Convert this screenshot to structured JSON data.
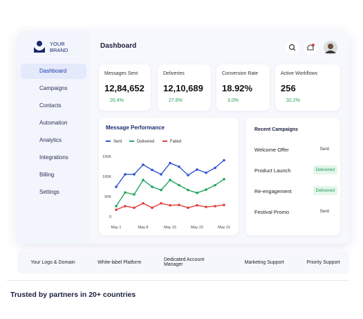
{
  "brand": {
    "line1": "YOUR",
    "line2": "BRAND"
  },
  "nav": {
    "active": 0,
    "items": [
      "Dashboard",
      "Campaigns",
      "Contacts",
      "Automation",
      "Analytics",
      "Integrations",
      "Billing",
      "Settings"
    ]
  },
  "header": {
    "title": "Dashboard"
  },
  "stats": [
    {
      "label": "Messages Sent",
      "value": "12,84,652",
      "change": "20.4%"
    },
    {
      "label": "Deliveries",
      "value": "12,10,689",
      "change": "27.6%"
    },
    {
      "label": "Conversion Rate",
      "value": "18.92%",
      "change": "3.0%"
    },
    {
      "label": "Active Workflows",
      "value": "256",
      "change": "32.2%"
    }
  ],
  "chart_data": {
    "type": "line",
    "title": "Message Performance",
    "categories": [
      "May 1",
      null,
      null,
      "May 8",
      null,
      null,
      "May 15",
      null,
      null,
      "May 22",
      null,
      null,
      "May 31"
    ],
    "series": [
      {
        "name": "Sent",
        "color": "#2f55d4",
        "values": [
          74000,
          105000,
          105000,
          129000,
          116000,
          105000,
          133000,
          124000,
          103000,
          117000,
          109000,
          121000,
          140000
        ]
      },
      {
        "name": "Delivered",
        "color": "#22a45d",
        "values": [
          26000,
          60000,
          55000,
          91000,
          74000,
          66000,
          91000,
          78000,
          66000,
          59000,
          67000,
          78000,
          93000
        ]
      },
      {
        "name": "Failed",
        "color": "#e0413b",
        "values": [
          17000,
          26000,
          22000,
          33000,
          22000,
          33000,
          28000,
          29000,
          22000,
          28000,
          24000,
          26000,
          29000
        ]
      }
    ],
    "ylim": [
      0,
      160000
    ],
    "yticks": [
      0,
      {
        "value": 50000,
        "label": "50K"
      },
      {
        "value": 100000,
        "label": "100K"
      },
      {
        "value": 150000,
        "label": "150K"
      }
    ],
    "grid": false,
    "legend": "top-left"
  },
  "campaigns": {
    "title": "Recent Campaigns",
    "rows": [
      {
        "name": "Welcome Offer",
        "status": "Sent",
        "badge": false
      },
      {
        "name": "Product Launch",
        "status": "Delivered",
        "badge": true
      },
      {
        "name": "Re-engagement",
        "status": "Delivered",
        "badge": true
      },
      {
        "name": "Festival Promo",
        "status": "Sent",
        "badge": false
      }
    ]
  },
  "features": [
    "Your Logo & Domain",
    "White-label Platform",
    "Dedicated Account Manager",
    "Marketing Support",
    "Priority Support"
  ],
  "footer": {
    "title": "Trusted by partners in 20+ countries"
  }
}
